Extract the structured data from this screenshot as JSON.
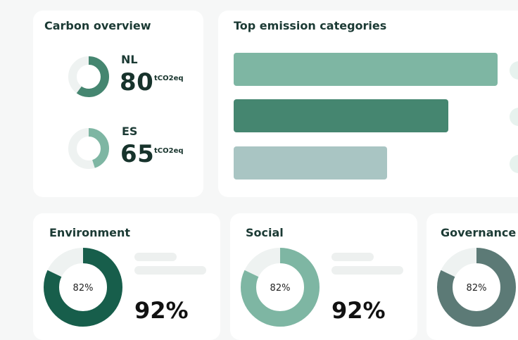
{
  "carbon_overview": {
    "title": "Carbon overview",
    "items": [
      {
        "country": "NL",
        "value": "80",
        "unit": "tCO2eq",
        "fill": 0.6,
        "color": "#458670"
      },
      {
        "country": "ES",
        "value": "65",
        "unit": "tCO2eq",
        "fill": 0.45,
        "color": "#7eb6a3"
      }
    ]
  },
  "top_emissions": {
    "title": "Top emission categories",
    "bars": [
      {
        "color": "#7eb6a3"
      },
      {
        "color": "#458670"
      },
      {
        "color": "#a9c5c3"
      }
    ]
  },
  "esg": {
    "environment": {
      "title": "Environment",
      "center": "82%",
      "value": "92%",
      "fill": 0.82,
      "color": "#175e4b"
    },
    "social": {
      "title": "Social",
      "center": "82%",
      "value": "92%",
      "fill": 0.82,
      "color": "#7eb6a3"
    },
    "governance": {
      "title": "Governance",
      "center": "82%",
      "fill": 0.82,
      "color": "#5c7a76"
    }
  },
  "colors": {
    "background": "#f6f7f7",
    "track": "#eef2f1",
    "skeleton": "#edf0ef"
  }
}
